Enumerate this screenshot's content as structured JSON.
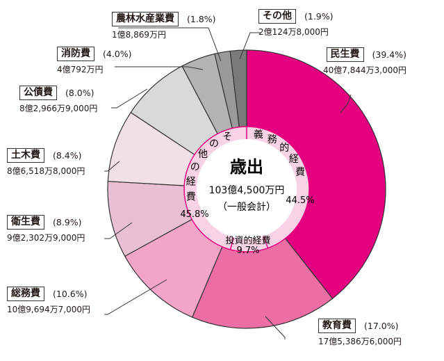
{
  "chart_data": {
    "type": "pie",
    "title": "歳出",
    "subtitle": "103億4,500万円",
    "note": "（一般会計）",
    "slices": [
      {
        "label": "民生費",
        "percent_label": "(39.4%)",
        "amount": "40億7,844万3,000円",
        "value": 39.4,
        "color": "#e4007f",
        "group": "obligatory"
      },
      {
        "label": "教育費",
        "percent_label": "(17.0%)",
        "amount": "17億5,386万6,000円",
        "value": 17.0,
        "color": "#ec6ea5",
        "group": "investment"
      },
      {
        "label": "総務費",
        "percent_label": "(10.6%)",
        "amount": "10億9,694万7,000円",
        "value": 10.6,
        "color": "#f3a5c8",
        "group": "other"
      },
      {
        "label": "衛生費",
        "percent_label": "(8.9%)",
        "amount": "9億2,302万9,000円",
        "value": 8.9,
        "color": "#e8bfd3",
        "group": "other"
      },
      {
        "label": "土木費",
        "percent_label": "(8.4%)",
        "amount": "8億6,518万8,000円",
        "value": 8.4,
        "color": "#f1e0e8",
        "group": "other"
      },
      {
        "label": "公債費",
        "percent_label": "(8.0%)",
        "amount": "8億2,966万9,000円",
        "value": 8.0,
        "color": "#d9d9d9",
        "group": "other"
      },
      {
        "label": "消防費",
        "percent_label": "(4.0%)",
        "amount": "4億792万円",
        "value": 4.0,
        "color": "#b3b3b3",
        "group": "other"
      },
      {
        "label": "農林水産業費",
        "percent_label": "(1.8%)",
        "amount": "1億8,869万円",
        "value": 1.8,
        "color": "#9a9a9a",
        "group": "other"
      },
      {
        "label": "その他",
        "percent_label": "(1.9%)",
        "amount": "2億124万8,000円",
        "value": 1.9,
        "color": "#7a7a7a",
        "group": "other"
      }
    ],
    "inner_ring": [
      {
        "label": "義務的経費",
        "percent_label": "44.5%",
        "value": 44.5
      },
      {
        "label": "投資的経費",
        "percent_label": "9.7%",
        "value": 9.7
      },
      {
        "label": "その他の経費",
        "percent_label": "45.8%",
        "value": 45.8
      }
    ]
  }
}
